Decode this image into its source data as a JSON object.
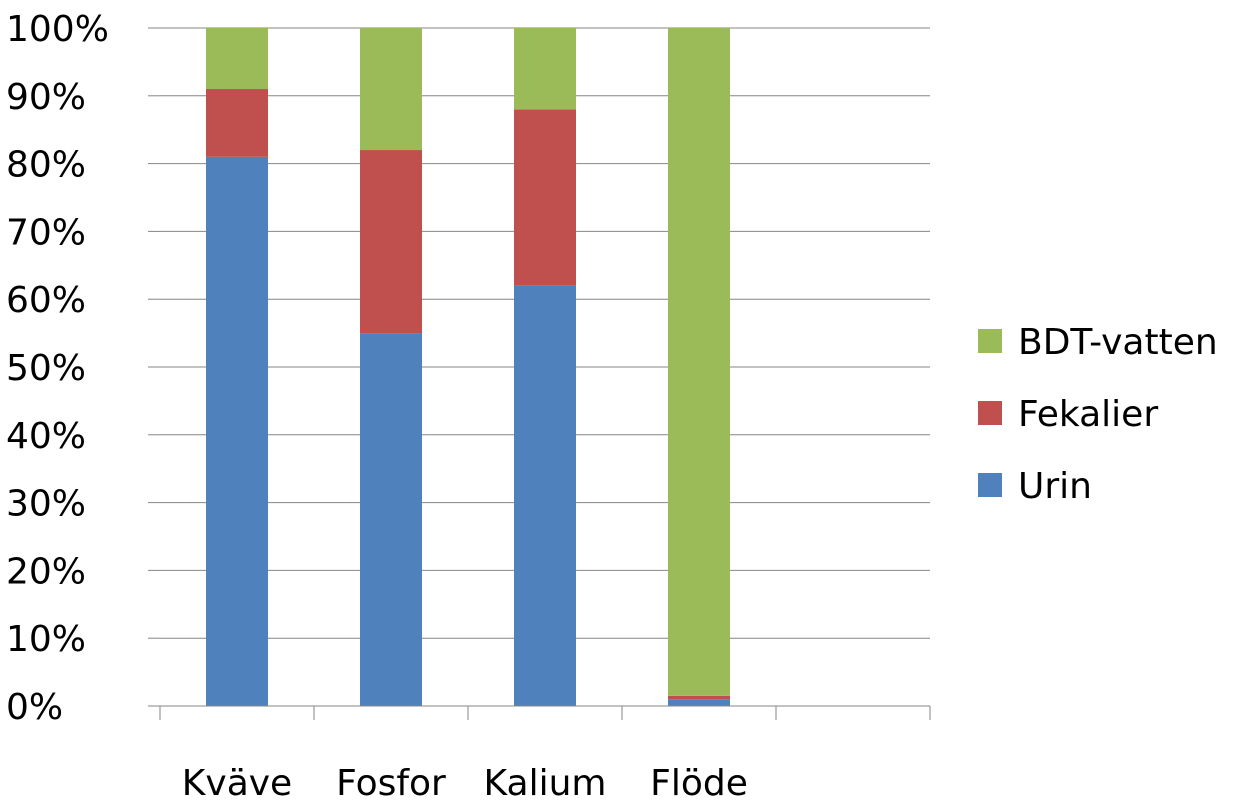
{
  "chart_data": {
    "type": "bar",
    "stacked": true,
    "percent": true,
    "categories": [
      "Kväve",
      "Fosfor",
      "Kalium",
      "Flöde",
      ""
    ],
    "series": [
      {
        "name": "Urin",
        "color": "#4F81BD",
        "values": [
          81,
          55,
          62,
          1,
          0
        ]
      },
      {
        "name": "Fekalier",
        "color": "#C0504D",
        "values": [
          10,
          27,
          26,
          0.5,
          0
        ]
      },
      {
        "name": "BDT-vatten",
        "color": "#9BBB59",
        "values": [
          9,
          18,
          12,
          98.5,
          0
        ]
      }
    ],
    "ylim": [
      0,
      100
    ],
    "yticks": [
      "0%",
      "10%",
      "20%",
      "30%",
      "40%",
      "50%",
      "60%",
      "70%",
      "80%",
      "90%",
      "100%"
    ],
    "grid": true,
    "legend": {
      "position": "right",
      "order": [
        "BDT-vatten",
        "Fekalier",
        "Urin"
      ]
    },
    "title": "",
    "xlabel": "",
    "ylabel": ""
  }
}
